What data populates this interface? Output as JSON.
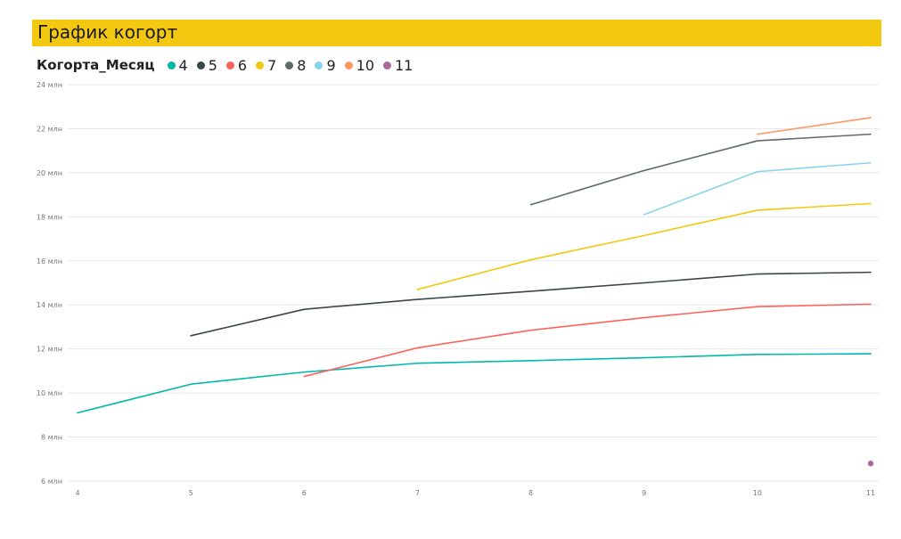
{
  "title": "График когорт",
  "legend": {
    "title": "Когорта_Месяц",
    "placement": "top-left"
  },
  "chart_data": {
    "type": "line",
    "title": "График когорт",
    "xlabel": "",
    "ylabel": "",
    "x_ticks": [
      "4",
      "5",
      "6",
      "7",
      "8",
      "9",
      "10",
      "11"
    ],
    "y_ticks": [
      "6 млн",
      "8 млн",
      "10 млн",
      "12 млн",
      "14 млн",
      "16 млн",
      "18 млн",
      "20 млн",
      "22 млн",
      "24 млн"
    ],
    "xlim": [
      4,
      11
    ],
    "ylim": [
      6,
      24
    ],
    "grid": true,
    "series": [
      {
        "name": "4",
        "color": "#01B8AA",
        "x": [
          4,
          5,
          6,
          7,
          8,
          9,
          10,
          11
        ],
        "y": [
          9.1,
          10.4,
          10.95,
          11.35,
          11.47,
          11.6,
          11.75,
          11.78
        ]
      },
      {
        "name": "5",
        "color": "#374649",
        "x": [
          5,
          6,
          7,
          8,
          9,
          10,
          11
        ],
        "y": [
          12.6,
          13.8,
          14.25,
          14.62,
          15.0,
          15.4,
          15.48
        ]
      },
      {
        "name": "6",
        "color": "#FD625E",
        "x": [
          6,
          7,
          8,
          9,
          10,
          11
        ],
        "y": [
          10.75,
          12.05,
          12.85,
          13.42,
          13.92,
          14.03
        ]
      },
      {
        "name": "7",
        "color": "#F2C80F",
        "x": [
          7,
          8,
          9,
          10,
          11
        ],
        "y": [
          14.7,
          16.05,
          17.15,
          18.3,
          18.6
        ]
      },
      {
        "name": "8",
        "color": "#5F6B6D",
        "x": [
          8,
          9,
          10,
          11
        ],
        "y": [
          18.55,
          20.1,
          21.45,
          21.75
        ]
      },
      {
        "name": "9",
        "color": "#8AD4EB",
        "x": [
          9,
          10,
          11
        ],
        "y": [
          18.1,
          20.05,
          20.45
        ]
      },
      {
        "name": "10",
        "color": "#FE9666",
        "x": [
          10,
          11
        ],
        "y": [
          21.75,
          22.5
        ]
      },
      {
        "name": "11",
        "color": "#A66999",
        "x": [
          11
        ],
        "y": [
          6.8
        ]
      }
    ]
  }
}
